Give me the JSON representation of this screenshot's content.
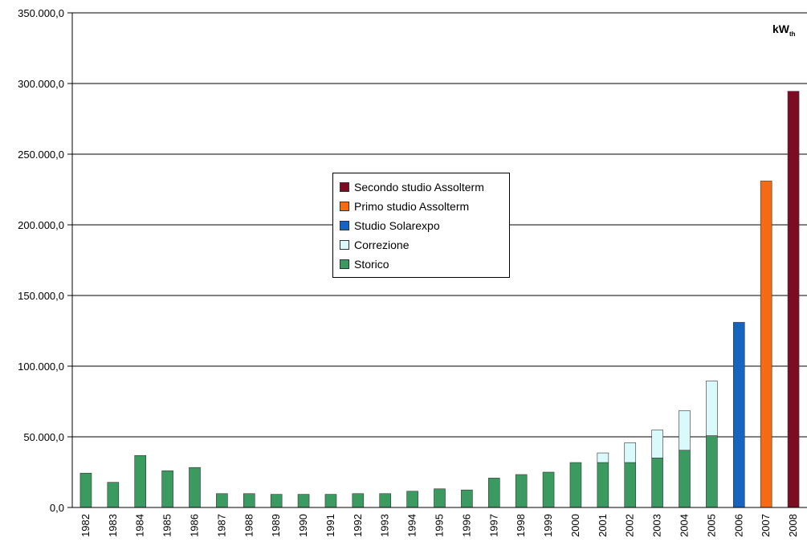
{
  "chart_data": {
    "type": "bar",
    "stacked": true,
    "unit": "kW",
    "unit_sub": "th",
    "ylim": [
      0,
      350000
    ],
    "yticks": [
      0,
      50000,
      100000,
      150000,
      200000,
      250000,
      300000,
      350000
    ],
    "ytick_labels": [
      "0,0",
      "50.000,0",
      "100.000,0",
      "150.000,0",
      "200.000,0",
      "250.000,0",
      "300.000,0",
      "350.000,0"
    ],
    "grid": true,
    "legend_position": "center",
    "categories": [
      "1982",
      "1983",
      "1984",
      "1985",
      "1986",
      "1987",
      "1988",
      "1989",
      "1990",
      "1991",
      "1992",
      "1993",
      "1994",
      "1995",
      "1996",
      "1997",
      "1998",
      "1999",
      "2000",
      "2001",
      "2002",
      "2003",
      "2004",
      "2005",
      "2006",
      "2007",
      "2008"
    ],
    "series": [
      {
        "name": "Storico",
        "color": "#3a9a60",
        "values": [
          24300,
          17800,
          36800,
          26000,
          28300,
          9800,
          9800,
          9300,
          9300,
          9300,
          9800,
          9800,
          11500,
          13200,
          12400,
          20800,
          23300,
          25000,
          31800,
          31800,
          31800,
          35000,
          40500,
          50800,
          0,
          0,
          0
        ]
      },
      {
        "name": "Correzione",
        "color": "#d9f9fb",
        "values": [
          0,
          0,
          0,
          0,
          0,
          0,
          0,
          0,
          0,
          0,
          0,
          0,
          0,
          0,
          0,
          0,
          0,
          0,
          0,
          6800,
          14000,
          19800,
          28000,
          38700,
          0,
          0,
          0
        ]
      },
      {
        "name": "Studio Solarexpo",
        "color": "#1565c0",
        "values": [
          0,
          0,
          0,
          0,
          0,
          0,
          0,
          0,
          0,
          0,
          0,
          0,
          0,
          0,
          0,
          0,
          0,
          0,
          0,
          0,
          0,
          0,
          0,
          0,
          131000,
          0,
          0
        ]
      },
      {
        "name": "Primo studio Assolterm",
        "color": "#f56a12",
        "values": [
          0,
          0,
          0,
          0,
          0,
          0,
          0,
          0,
          0,
          0,
          0,
          0,
          0,
          0,
          0,
          0,
          0,
          0,
          0,
          0,
          0,
          0,
          0,
          0,
          0,
          231000,
          0
        ]
      },
      {
        "name": "Secondo studio Assolterm",
        "color": "#7b0c22",
        "values": [
          0,
          0,
          0,
          0,
          0,
          0,
          0,
          0,
          0,
          0,
          0,
          0,
          0,
          0,
          0,
          0,
          0,
          0,
          0,
          0,
          0,
          0,
          0,
          0,
          0,
          0,
          294500
        ]
      }
    ],
    "legend_order": [
      "Secondo studio Assolterm",
      "Primo studio Assolterm",
      "Studio Solarexpo",
      "Correzione",
      "Storico"
    ]
  }
}
